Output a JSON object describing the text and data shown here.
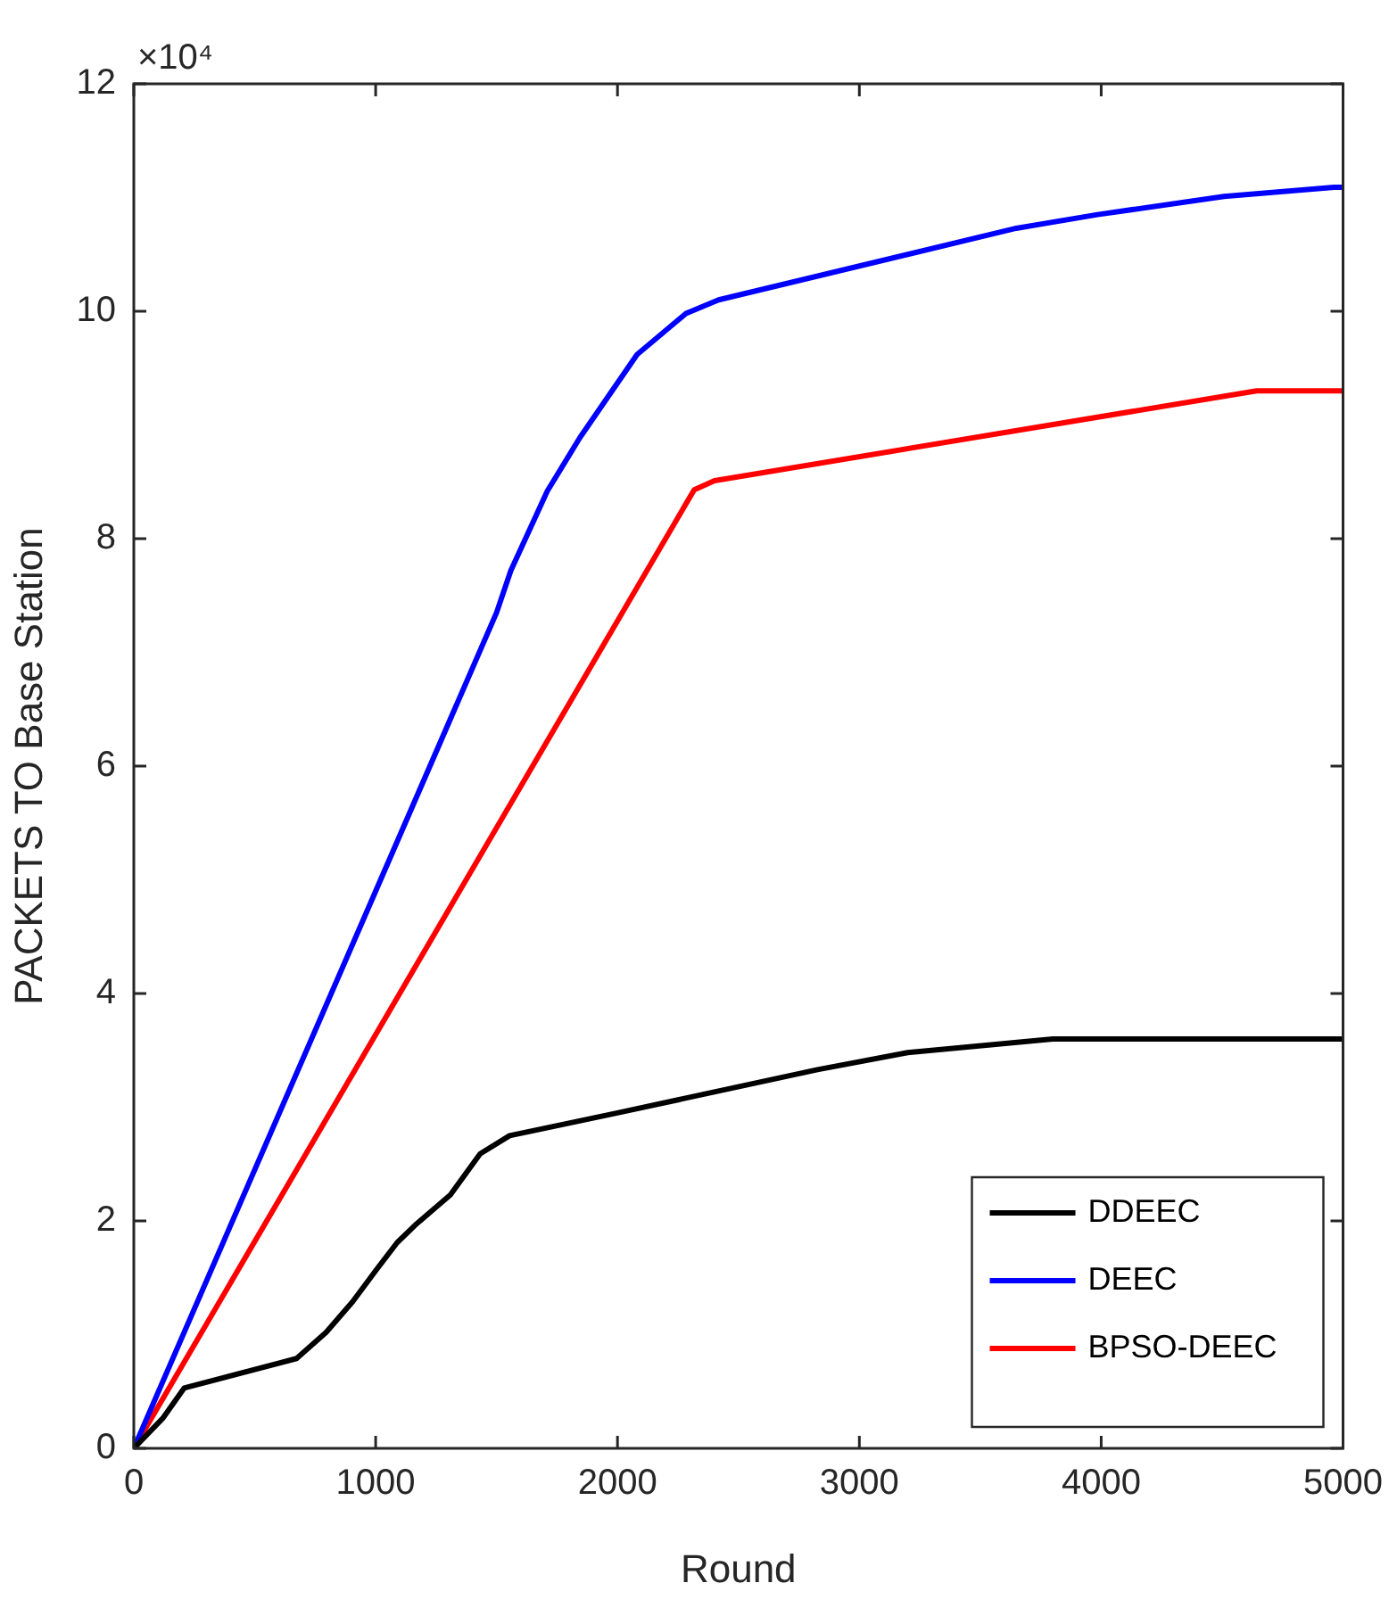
{
  "chart_data": {
    "type": "line",
    "xlabel": "Round",
    "ylabel": "PACKETS TO Base Station",
    "annotations": [
      "×10⁴"
    ],
    "xlim": [
      0,
      5000
    ],
    "xticks": [
      0,
      1000,
      2000,
      3000,
      4000,
      5000
    ],
    "ylim": [
      0,
      12
    ],
    "yticks": [
      0,
      2,
      4,
      6,
      8,
      10,
      12
    ],
    "grid": false,
    "legend": "bottom right",
    "marker": "none",
    "line_style": "solid",
    "series": [
      {
        "name": "DDEEC",
        "color": "#000000",
        "x": [
          0,
          122,
          208,
          673,
          795,
          905,
          1003,
          1089,
          1162,
          1309,
          1432,
          1554,
          2000,
          2827,
          3200,
          3800,
          5000
        ],
        "values": [
          0,
          0.27,
          0.53,
          0.79,
          1.02,
          1.29,
          1.57,
          1.81,
          1.96,
          2.23,
          2.59,
          2.75,
          2.95,
          3.33,
          3.48,
          3.6,
          3.6
        ]
      },
      {
        "name": "DEEC",
        "color": "#0000ff",
        "x": [
          0,
          1000,
          1500,
          1559,
          1710,
          1845,
          2081,
          2283,
          2418,
          3649,
          3985,
          4508,
          4963,
          5000
        ],
        "values": [
          0,
          4.9,
          7.35,
          7.72,
          8.42,
          8.89,
          9.62,
          9.98,
          10.1,
          10.73,
          10.85,
          11.01,
          11.09,
          11.09
        ]
      },
      {
        "name": "BPSO-DEEC",
        "color": "#ff0000",
        "x": [
          0,
          2317,
          2401,
          4643,
          5000
        ],
        "values": [
          0,
          8.43,
          8.51,
          9.3,
          9.3
        ]
      }
    ]
  }
}
